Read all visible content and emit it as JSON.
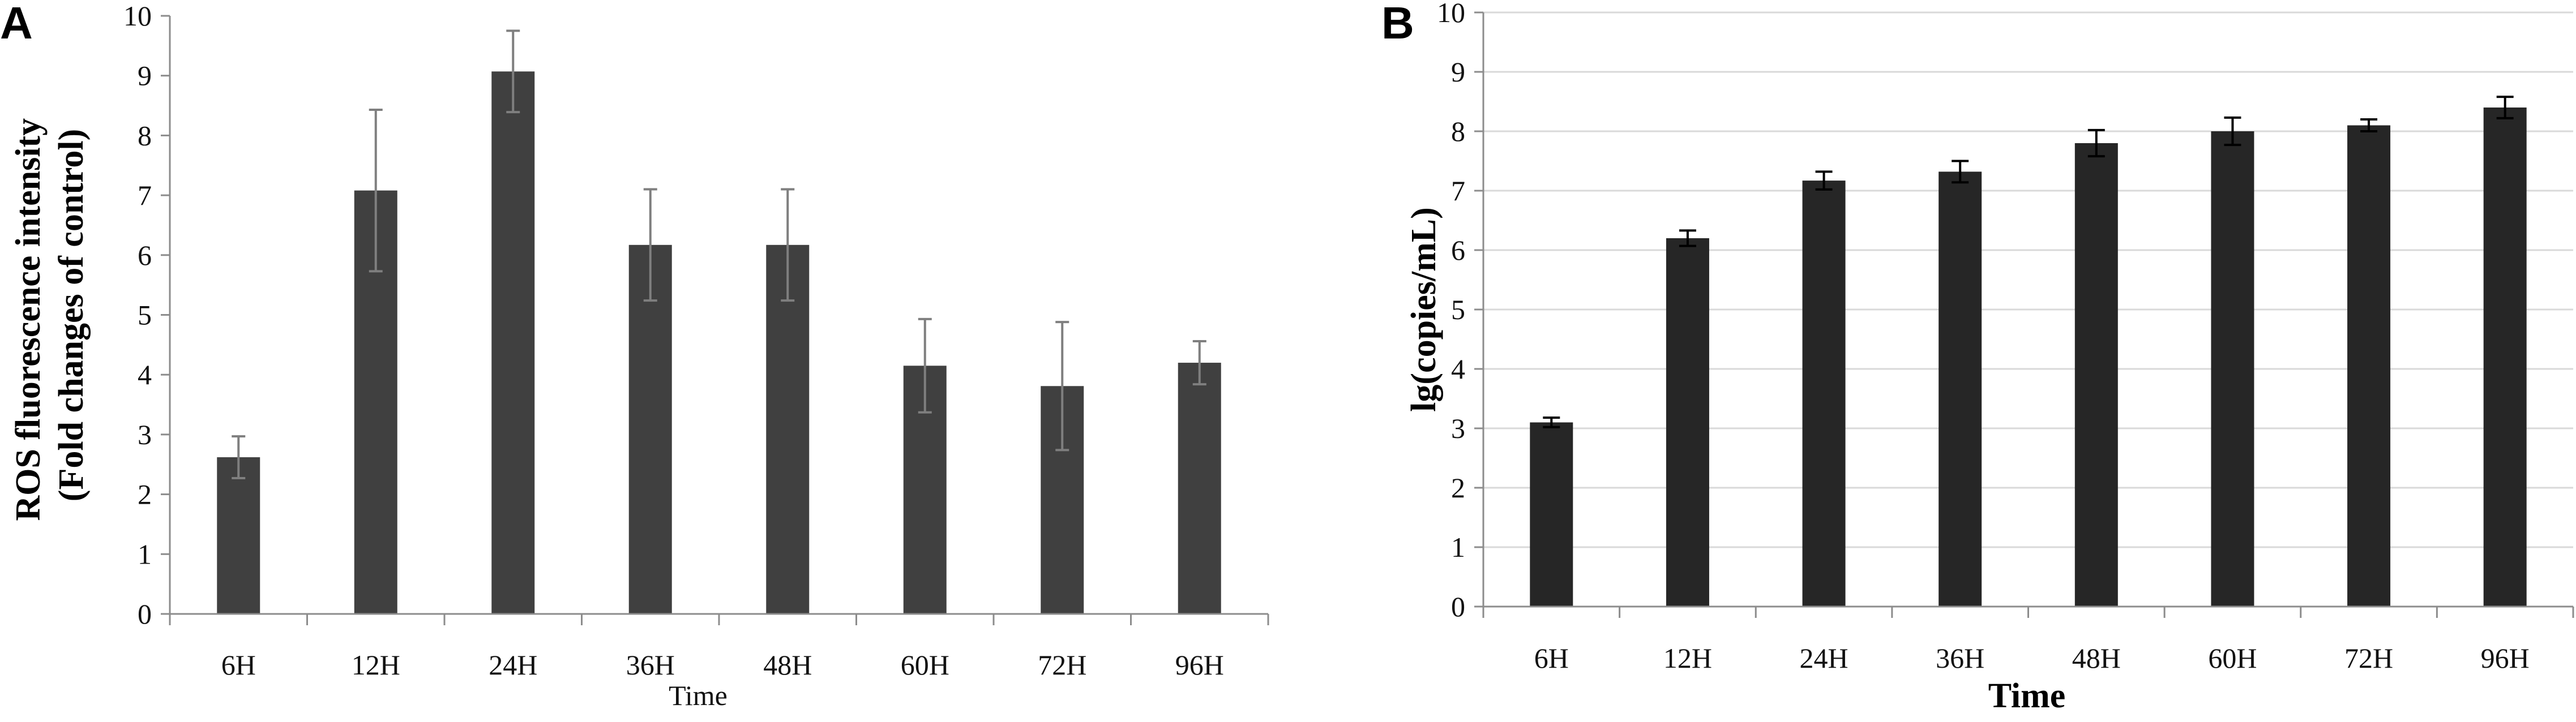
{
  "colors": {
    "panel_a_bar": "#404040",
    "panel_b_bar": "#262626",
    "grid": "#d9d9d9",
    "axis": "#8c8c8c"
  },
  "chart_data": [
    {
      "panel": "A",
      "type": "bar",
      "categories": [
        "6H",
        "12H",
        "24H",
        "36H",
        "48H",
        "60H",
        "72H",
        "96H"
      ],
      "values": [
        2.62,
        7.08,
        9.07,
        6.17,
        6.17,
        4.15,
        3.81,
        4.2
      ],
      "errors": [
        0.35,
        1.35,
        0.68,
        0.93,
        0.93,
        0.78,
        1.07,
        0.36
      ],
      "title": "",
      "xlabel": "Time",
      "ylabel_lines": [
        "ROS fluorescence intensity",
        "(Fold changes of control)"
      ],
      "ylim": [
        0,
        10
      ],
      "yticks": [
        0,
        1,
        2,
        3,
        4,
        5,
        6,
        7,
        8,
        9,
        10
      ],
      "grid": false
    },
    {
      "panel": "B",
      "type": "bar",
      "categories": [
        "6H",
        "12H",
        "24H",
        "36H",
        "48H",
        "60H",
        "72H",
        "96H"
      ],
      "values": [
        3.1,
        6.2,
        7.17,
        7.32,
        7.8,
        8.0,
        8.1,
        8.4
      ],
      "errors": [
        0.08,
        0.13,
        0.15,
        0.18,
        0.22,
        0.23,
        0.1,
        0.18
      ],
      "title": "",
      "xlabel": "Time",
      "ylabel": "lg(copies/mL)",
      "ylim": [
        0,
        10
      ],
      "yticks": [
        0,
        1,
        2,
        3,
        4,
        5,
        6,
        7,
        8,
        9,
        10
      ],
      "grid": true
    }
  ]
}
